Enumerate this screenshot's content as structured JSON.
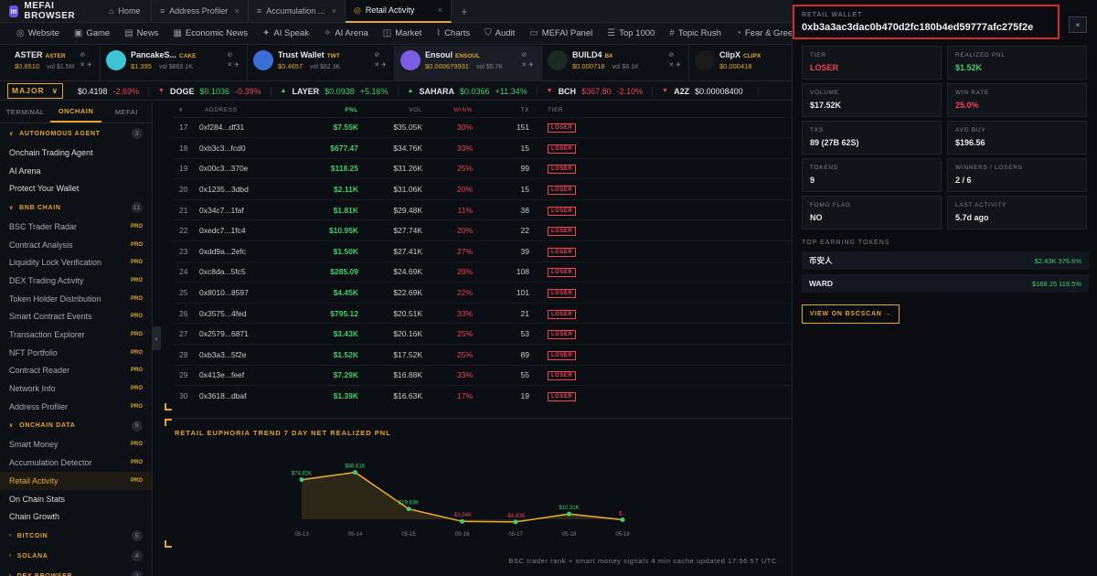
{
  "browser": {
    "brand": "MEFAI BROWSER",
    "tabs": [
      {
        "label": "Home",
        "active": false
      },
      {
        "label": "Address Profiler",
        "active": false
      },
      {
        "label": "Accumulation ...",
        "active": false
      },
      {
        "label": "Retail Activity",
        "active": true
      }
    ],
    "new_tab": "+"
  },
  "nav": [
    {
      "label": "Website",
      "icon": "globe-icon"
    },
    {
      "label": "Game",
      "icon": "gamepad-icon"
    },
    {
      "label": "News",
      "icon": "newspaper-icon"
    },
    {
      "label": "Economic News",
      "icon": "calendar-icon"
    },
    {
      "label": "AI Speak",
      "icon": "sparkle-icon"
    },
    {
      "label": "AI Arena",
      "icon": "robot-icon"
    },
    {
      "label": "Market",
      "icon": "market-icon"
    },
    {
      "label": "Charts",
      "icon": "chart-icon"
    },
    {
      "label": "Audit",
      "icon": "shield-icon"
    },
    {
      "label": "MEFAI Panel",
      "icon": "panel-icon"
    },
    {
      "label": "Top 1000",
      "icon": "list-icon"
    },
    {
      "label": "Topic Rush",
      "icon": "pound-icon"
    },
    {
      "label": "Fear & Greed",
      "icon": "gauge-icon"
    }
  ],
  "tokens": [
    {
      "name": "ASTER",
      "ticker": "ASTER",
      "price": "$0.6510",
      "vol": "vol $1.5M"
    },
    {
      "name": "PancakeS...",
      "ticker": "CAKE",
      "price": "$1.395",
      "vol": "vol $869.1K"
    },
    {
      "name": "Trust Wallet",
      "ticker": "TWT",
      "price": "$0.4657",
      "vol": "vol $82.3K"
    },
    {
      "name": "Ensoul",
      "ticker": "ENSOUL",
      "price": "$0.000679931",
      "vol": "vol $5.7K"
    },
    {
      "name": "BUILD4",
      "ticker": "B4",
      "price": "$0.000718",
      "vol": "vol $6.1K"
    },
    {
      "name": "ClipX",
      "ticker": "CLIPX",
      "price": "$0.000418",
      "vol": ""
    }
  ],
  "ticker": {
    "major_label": "MAJOR",
    "items": [
      {
        "symbol": "",
        "price": "$0.4198",
        "change": "-2.69%",
        "dir": "down"
      },
      {
        "symbol": "DOGE",
        "price": "$0.1036",
        "change": "-0.39%",
        "dir": "down"
      },
      {
        "symbol": "LAYER",
        "price": "$0.0938",
        "change": "+5.16%",
        "dir": "up"
      },
      {
        "symbol": "SAHARA",
        "price": "$0.0366",
        "change": "+11.34%",
        "dir": "up"
      },
      {
        "symbol": "BCH",
        "price": "$367.80",
        "change": "-2.10%",
        "dir": "down"
      },
      {
        "symbol": "A2Z",
        "price": "$0.00008400",
        "change": "",
        "dir": "down"
      }
    ]
  },
  "sidebar": {
    "tabs": [
      "TERMINAL",
      "ONCHAIN",
      "MEFAI"
    ],
    "active_tab": "ONCHAIN",
    "sections": [
      {
        "title": "AUTONOMOUS AGENT",
        "count": "3",
        "expanded": true,
        "items": [
          {
            "label": "Onchain Trading Agent",
            "pro": ""
          },
          {
            "label": "AI Arena",
            "pro": ""
          },
          {
            "label": "Protect Your Wallet",
            "pro": ""
          }
        ]
      },
      {
        "title": "BNB CHAIN",
        "count": "11",
        "expanded": true,
        "items": [
          {
            "label": "BSC Trader Radar",
            "pro": "PRO"
          },
          {
            "label": "Contract Analysis",
            "pro": "PRO"
          },
          {
            "label": "Liquidity Lock Verification",
            "pro": "PRO"
          },
          {
            "label": "DEX Trading Activity",
            "pro": "PRO"
          },
          {
            "label": "Token Holder Distribution",
            "pro": "PRO"
          },
          {
            "label": "Smart Contract Events",
            "pro": "PRO"
          },
          {
            "label": "Transaction Explorer",
            "pro": "PRO"
          },
          {
            "label": "NFT Portfolio",
            "pro": "PRO"
          },
          {
            "label": "Contract Reader",
            "pro": "PRO"
          },
          {
            "label": "Network Info",
            "pro": "PRO"
          },
          {
            "label": "Address Profiler",
            "pro": "PRO"
          }
        ]
      },
      {
        "title": "ONCHAIN DATA",
        "count": "5",
        "expanded": true,
        "items": [
          {
            "label": "Smart Money",
            "pro": "PRO"
          },
          {
            "label": "Accumulation Detector",
            "pro": "PRO"
          },
          {
            "label": "Retail Activity",
            "pro": "PRO",
            "active": true
          },
          {
            "label": "On Chain Stats",
            "pro": ""
          },
          {
            "label": "Chain Growth",
            "pro": ""
          }
        ]
      },
      {
        "title": "BITCOIN",
        "count": "5",
        "expanded": false,
        "items": []
      },
      {
        "title": "SOLANA",
        "count": "4",
        "expanded": false,
        "items": []
      },
      {
        "title": "DEX BROWSER",
        "count": "2",
        "expanded": false,
        "items": []
      }
    ]
  },
  "table": {
    "headers": [
      "#",
      "ADDRESS",
      "PNL",
      "VOL",
      "WIN%",
      "TX",
      "TIER"
    ],
    "rows": [
      [
        "17",
        "0xf284...df31",
        "$7.55K",
        "$35.05K",
        "30%",
        "151",
        "LOSER"
      ],
      [
        "18",
        "0xb3c3...fcd0",
        "$677.47",
        "$34.76K",
        "33%",
        "15",
        "LOSER"
      ],
      [
        "19",
        "0x00c3...370e",
        "$118.25",
        "$31.26K",
        "25%",
        "99",
        "LOSER"
      ],
      [
        "20",
        "0x1235...3dbd",
        "$2.11K",
        "$31.06K",
        "20%",
        "15",
        "LOSER"
      ],
      [
        "21",
        "0x34c7...1faf",
        "$1.81K",
        "$29.48K",
        "11%",
        "38",
        "LOSER"
      ],
      [
        "22",
        "0xedc7...1fc4",
        "$10.95K",
        "$27.74K",
        "20%",
        "22",
        "LOSER"
      ],
      [
        "23",
        "0xdd9a...2efc",
        "$1.50K",
        "$27.41K",
        "27%",
        "39",
        "LOSER"
      ],
      [
        "24",
        "0xc8da...5fc5",
        "$285.09",
        "$24.69K",
        "20%",
        "108",
        "LOSER"
      ],
      [
        "25",
        "0x8010...8597",
        "$4.45K",
        "$22.69K",
        "22%",
        "101",
        "LOSER"
      ],
      [
        "26",
        "0x3575...4fed",
        "$795.12",
        "$20.51K",
        "33%",
        "21",
        "LOSER"
      ],
      [
        "27",
        "0x2579...6871",
        "$3.43K",
        "$20.16K",
        "25%",
        "53",
        "LOSER"
      ],
      [
        "28",
        "0xb3a3...5f2e",
        "$1.52K",
        "$17.52K",
        "25%",
        "89",
        "LOSER"
      ],
      [
        "29",
        "0x413e...feef",
        "$7.29K",
        "$16.88K",
        "33%",
        "55",
        "LOSER"
      ],
      [
        "30",
        "0x3618...dbaf",
        "$1.39K",
        "$16.63K",
        "17%",
        "19",
        "LOSER"
      ]
    ]
  },
  "chart_data": {
    "type": "area",
    "title": "RETAIL EUPHORIA TREND 7 DAY NET REALIZED PNL",
    "categories": [
      "05-13",
      "05-14",
      "05-15",
      "05-16",
      "05-17",
      "05-18",
      "05-19"
    ],
    "values": [
      74.82,
      88.61,
      19.83,
      -3.54,
      -4.63,
      10.31,
      -0.5
    ],
    "labels": [
      "$74.82K",
      "$88.61K",
      "$19.83K",
      "-$3.54K",
      "-$4.63K",
      "$10.31K",
      "$..."
    ],
    "ylim": [
      -10,
      100
    ],
    "grid": false,
    "line_color": "#e3a82b",
    "fill_color": "#2b2616"
  },
  "footer": "BSC trader rank + smart money signals 4 min cache updated 17:56:57 UTC",
  "detail": {
    "label": "RETAIL WALLET",
    "address": "0xb3a3ac3dac0b470d2fc180b4ed59777afc275f2e",
    "close": "×",
    "stats": [
      {
        "key": "TIER",
        "value": "LOSER",
        "tone": "red"
      },
      {
        "key": "REALIZED PNL",
        "value": "$1.52K",
        "tone": "green"
      },
      {
        "key": "VOLUME",
        "value": "$17.52K",
        "tone": ""
      },
      {
        "key": "WIN RATE",
        "value": "25.0%",
        "tone": "red"
      },
      {
        "key": "TXS",
        "value": "89 (27B 62S)",
        "tone": ""
      },
      {
        "key": "AVG BUY",
        "value": "$196.56",
        "tone": ""
      },
      {
        "key": "TOKENS",
        "value": "9",
        "tone": ""
      },
      {
        "key": "WINNERS / LOSERS",
        "value": "2 / 6",
        "tone": ""
      },
      {
        "key": "FOMO FLAG",
        "value": "NO",
        "tone": ""
      },
      {
        "key": "LAST ACTIVITY",
        "value": "5.7d ago",
        "tone": ""
      }
    ],
    "top_label": "TOP EARNING TOKENS",
    "earning": [
      {
        "token": "币安人",
        "value": "$2.43K 376.6%"
      },
      {
        "token": "WARD",
        "value": "$168.25 119.5%"
      }
    ],
    "bscscan_button": "VIEW ON BSCSCAN →"
  }
}
